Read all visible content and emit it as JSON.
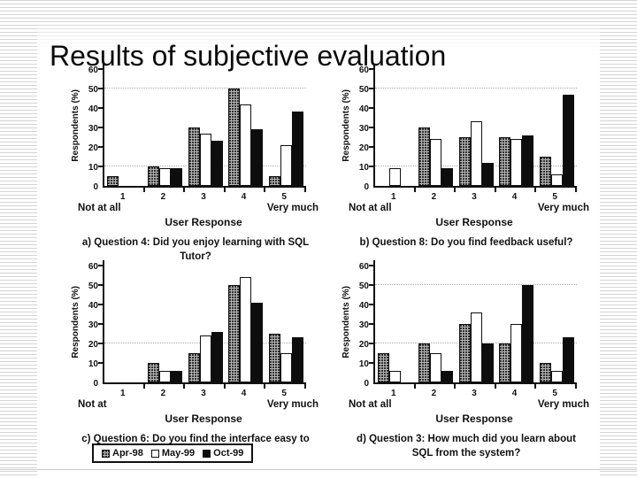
{
  "slide": {
    "title": "Results of subjective evaluation"
  },
  "colors": {
    "bar_apr98_fill": "#b2b2b2",
    "bar_may99_fill": "#ffffff",
    "bar_oct99_fill": "#0d0d0d",
    "axis": "#111111",
    "gridline": "#a8a8a8",
    "background_stripe": "#d4d4d4"
  },
  "legend": {
    "items": [
      {
        "label": "Apr-98",
        "swatch": "speckled-gray"
      },
      {
        "label": "May-99",
        "swatch": "white"
      },
      {
        "label": "Oct-99",
        "swatch": "black"
      }
    ]
  },
  "chart_data": [
    {
      "id": "a",
      "type": "bar",
      "caption": "a) Question 4: Did you enjoy learning with SQL Tutor?",
      "categories": [
        "1",
        "2",
        "3",
        "4",
        "5"
      ],
      "series": [
        {
          "name": "Apr-98",
          "values": [
            5,
            10,
            30,
            50,
            5
          ]
        },
        {
          "name": "May-99",
          "values": [
            0,
            9,
            27,
            42,
            21
          ]
        },
        {
          "name": "Oct-99",
          "values": [
            0,
            9,
            23,
            29,
            38
          ]
        }
      ],
      "ylabel": "Respondents (%)",
      "xlabel": "User Response",
      "left_anchor": "Not at all",
      "right_anchor": "Very much",
      "ylim": [
        0,
        60
      ],
      "yticks": [
        0,
        10,
        20,
        30,
        40,
        50,
        60
      ],
      "gridlines": [
        10,
        50
      ],
      "legend_position": "none"
    },
    {
      "id": "b",
      "type": "bar",
      "caption": "b) Question 8: Do you find feedback useful?",
      "categories": [
        "1",
        "2",
        "3",
        "4",
        "5"
      ],
      "series": [
        {
          "name": "Apr-98",
          "values": [
            0,
            30,
            25,
            25,
            15
          ]
        },
        {
          "name": "May-99",
          "values": [
            9,
            24,
            33,
            24,
            6
          ]
        },
        {
          "name": "Oct-99",
          "values": [
            0,
            9,
            12,
            26,
            47
          ]
        }
      ],
      "ylabel": "Respondents (%)",
      "xlabel": "User Response",
      "left_anchor": "Not at all",
      "right_anchor": "Very much",
      "ylim": [
        0,
        60
      ],
      "yticks": [
        0,
        10,
        20,
        30,
        40,
        50,
        60
      ],
      "gridlines": [
        10,
        50
      ],
      "legend_position": "none"
    },
    {
      "id": "c",
      "type": "bar",
      "caption": "c) Question 6: Do you find the interface easy to use?",
      "categories": [
        "1",
        "2",
        "3",
        "4",
        "5"
      ],
      "series": [
        {
          "name": "Apr-98",
          "values": [
            0,
            10,
            15,
            50,
            25
          ]
        },
        {
          "name": "May-99",
          "values": [
            0,
            6,
            24,
            54,
            15
          ]
        },
        {
          "name": "Oct-99",
          "values": [
            0,
            6,
            26,
            41,
            23
          ]
        }
      ],
      "ylabel": "Respondents (%)",
      "xlabel": "User Response",
      "left_anchor": "Not at",
      "right_anchor": "Very much",
      "ylim": [
        0,
        60
      ],
      "yticks": [
        0,
        10,
        20,
        30,
        40,
        50,
        60
      ],
      "gridlines": [
        20
      ],
      "legend_position": "below"
    },
    {
      "id": "d",
      "type": "bar",
      "caption": "d) Question 3: How much did you learn about SQL from the system?",
      "categories": [
        "1",
        "2",
        "3",
        "4",
        "5"
      ],
      "series": [
        {
          "name": "Apr-98",
          "values": [
            15,
            20,
            30,
            20,
            10
          ]
        },
        {
          "name": "May-99",
          "values": [
            6,
            15,
            36,
            30,
            6
          ]
        },
        {
          "name": "Oct-99",
          "values": [
            0,
            6,
            20,
            50,
            23
          ]
        }
      ],
      "ylabel": "Respondents (%)",
      "xlabel": "User Response",
      "left_anchor": "Not at all",
      "right_anchor": "Very much",
      "ylim": [
        0,
        60
      ],
      "yticks": [
        0,
        10,
        20,
        30,
        40,
        50,
        60
      ],
      "gridlines": [
        20,
        50
      ],
      "legend_position": "none"
    }
  ]
}
